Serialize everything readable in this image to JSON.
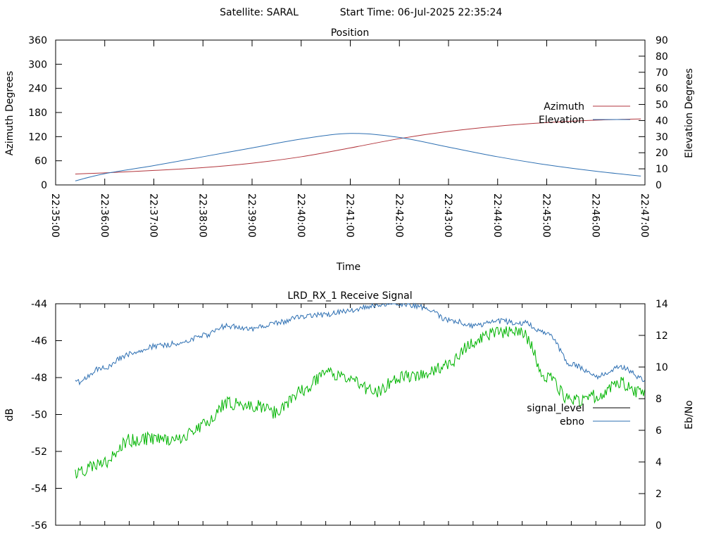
{
  "header": {
    "satellite": "Satellite: SARAL",
    "start_time": "Start Time: 06-Jul-2025 22:35:24"
  },
  "colors": {
    "azimuth": "#b2353c",
    "elevation": "#2d6fb2",
    "signal_level": "#000000",
    "ebno": "#2d6fb2",
    "green_trace": "#00b400"
  },
  "chart_data": [
    {
      "type": "line",
      "title": "Position",
      "xlabel": "Time",
      "ylabel": "Azimuth Degrees",
      "y2label": "Elevation Degrees",
      "x_ticks": [
        "22:35:00",
        "22:36:00",
        "22:37:00",
        "22:38:00",
        "22:39:00",
        "22:40:00",
        "22:41:00",
        "22:42:00",
        "22:43:00",
        "22:44:00",
        "22:45:00",
        "22:46:00",
        "22:47:00"
      ],
      "xlim": [
        "22:35:00",
        "22:47:00"
      ],
      "y_ticks": [
        "0",
        "60",
        "120",
        "180",
        "240",
        "300",
        "360"
      ],
      "ylim": [
        0,
        360
      ],
      "y2_ticks": [
        "0",
        "10",
        "20",
        "30",
        "40",
        "50",
        "60",
        "70",
        "80",
        "90"
      ],
      "y2lim": [
        0,
        90
      ],
      "legend_position": "right",
      "x": [
        "22:35:24",
        "22:36:00",
        "22:37:00",
        "22:38:00",
        "22:39:00",
        "22:40:00",
        "22:41:00",
        "22:42:00",
        "22:43:00",
        "22:44:00",
        "22:45:00",
        "22:46:00",
        "22:46:55"
      ],
      "series": [
        {
          "name": "Azimuth",
          "axis": "left",
          "values": [
            27,
            30,
            36,
            43,
            54,
            70,
            92,
            115,
            133,
            146,
            155,
            161,
            164
          ]
        },
        {
          "name": "Elevation",
          "axis": "right",
          "values": [
            2.5,
            7,
            12,
            17.5,
            23,
            28.5,
            32,
            29.5,
            23.5,
            17.5,
            12.5,
            8.5,
            5.5
          ]
        }
      ]
    },
    {
      "type": "line",
      "title": "LRD_RX_1 Receive Signal",
      "xlabel": "",
      "ylabel": "dB",
      "y2label": "Eb/No",
      "y_ticks": [
        "-44",
        "-46",
        "-48",
        "-50",
        "-52",
        "-54",
        "-56"
      ],
      "ylim": [
        -56,
        -44
      ],
      "y2_ticks": [
        "0",
        "2",
        "4",
        "6",
        "8",
        "10",
        "12",
        "14"
      ],
      "y2lim": [
        0,
        14
      ],
      "xlim": [
        "22:35:00",
        "22:47:00"
      ],
      "legend_position": "right",
      "legend": [
        "signal_level",
        "ebno"
      ],
      "x": [
        "22:35:24",
        "22:36:00",
        "22:36:30",
        "22:37:00",
        "22:37:30",
        "22:38:00",
        "22:38:30",
        "22:39:00",
        "22:39:30",
        "22:40:00",
        "22:40:30",
        "22:41:00",
        "22:41:30",
        "22:42:00",
        "22:42:30",
        "22:43:00",
        "22:43:30",
        "22:44:00",
        "22:44:30",
        "22:45:00",
        "22:45:30",
        "22:46:00",
        "22:46:30",
        "22:47:00"
      ],
      "series": [
        {
          "name": "signal_level",
          "axis": "left",
          "values": [
            -53.2,
            -52.6,
            -51.4,
            -51.3,
            -51.4,
            -50.6,
            -49.4,
            -49.5,
            -49.9,
            -48.7,
            -47.8,
            -48.0,
            -48.8,
            -48.0,
            -47.8,
            -47.3,
            -46.1,
            -45.5,
            -45.6,
            -47.9,
            -49.3,
            -49.0,
            -48.3,
            -48.9
          ]
        },
        {
          "name": "ebno",
          "axis": "right",
          "values": [
            9.0,
            10.0,
            10.8,
            11.3,
            11.5,
            12.0,
            12.6,
            12.4,
            12.8,
            13.2,
            13.3,
            13.6,
            13.9,
            14.0,
            13.8,
            13.0,
            12.6,
            12.9,
            12.8,
            12.2,
            10.2,
            9.4,
            10.0,
            9.2
          ]
        }
      ]
    }
  ]
}
